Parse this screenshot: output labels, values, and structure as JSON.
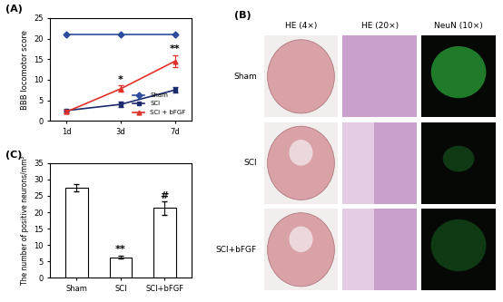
{
  "chart_data": [
    {
      "type": "line",
      "title": "(A)",
      "y_label": "BBB locomotor score",
      "categories": [
        "1d",
        "3d",
        "7d"
      ],
      "series": [
        {
          "name": "Sham",
          "color": "#2a4d9c",
          "marker": "diamond",
          "line_style": "solid",
          "values": [
            21,
            21,
            21
          ]
        },
        {
          "name": "SCI",
          "color": "#1c2a6e",
          "marker": "square",
          "line_style": "solid",
          "values": [
            2.5,
            4,
            7.5
          ],
          "errors": [
            0.3,
            0.6,
            0.7
          ]
        },
        {
          "name": "SCI + bFGF",
          "color": "#e0302a",
          "marker": "triangle",
          "line_style": "solid",
          "values": [
            2.2,
            7.8,
            14.5
          ],
          "errors": [
            0.4,
            0.8,
            1.5
          ]
        }
      ],
      "ylim": [
        0,
        25
      ],
      "yticks": [
        0,
        5,
        10,
        15,
        20,
        25
      ],
      "legend": "lower right",
      "annotations": [
        {
          "text": "*",
          "category": "3d",
          "series": "SCI + bFGF"
        },
        {
          "text": "**",
          "category": "7d",
          "series": "SCI + bFGF"
        }
      ]
    },
    {
      "type": "bar",
      "title": "(C)",
      "y_label": "The number of positive neurons/mm²",
      "categories": [
        "Sham",
        "SCI",
        "SCI+bFGF"
      ],
      "values": [
        27.5,
        6.3,
        21.3
      ],
      "errors": [
        1.2,
        0.5,
        2.0
      ],
      "color": "#ffffff",
      "ylim": [
        0,
        35
      ],
      "yticks": [
        0,
        5,
        10,
        15,
        20,
        25,
        30,
        35
      ],
      "annotations": [
        {
          "text": "**",
          "category": "SCI"
        },
        {
          "text": "#",
          "category": "SCI+bFGF"
        }
      ]
    }
  ],
  "image_panel": {
    "title": "(B)",
    "columns": [
      "HE (4×)",
      "HE (20×)",
      "NeuN (10×)"
    ],
    "rows": [
      "Sham",
      "SCI",
      "SCI+bFGF"
    ]
  }
}
